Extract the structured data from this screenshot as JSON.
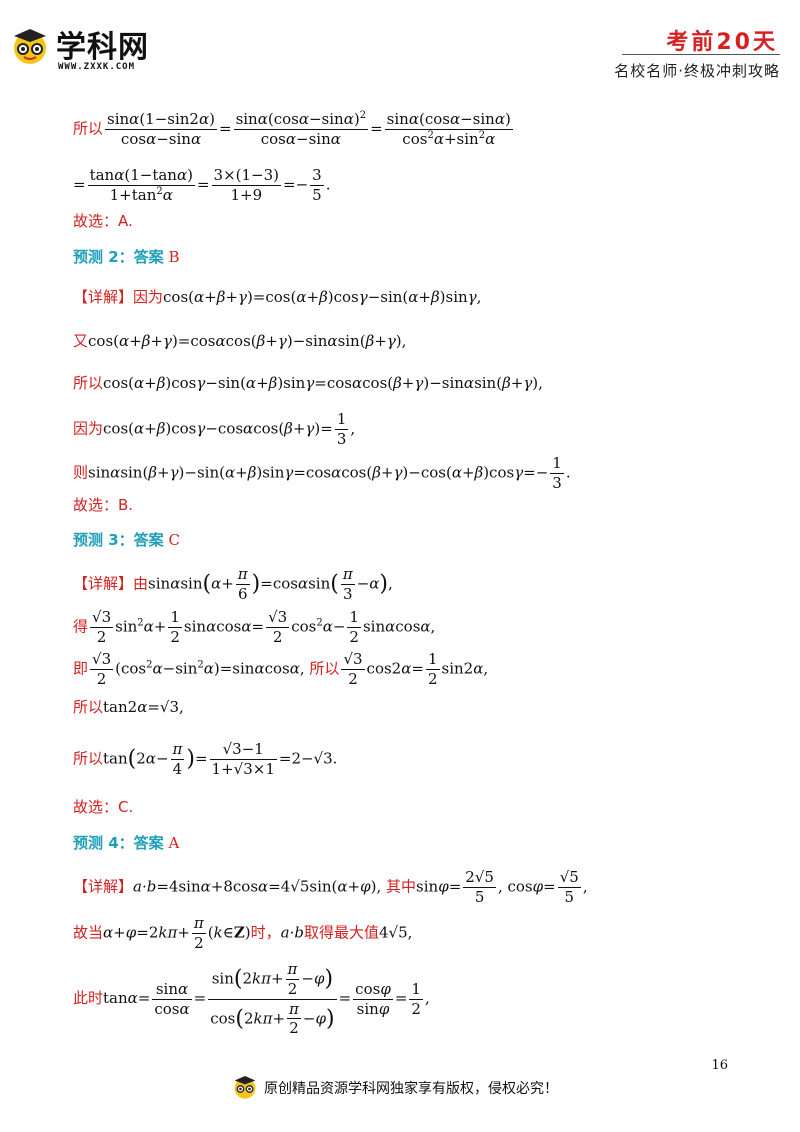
{
  "header": {
    "logo_text": "学科网",
    "logo_url": "WWW.ZXXK.COM",
    "title": "考前20天",
    "subtitle": "名校名师·终极冲刺攻略"
  },
  "lines": {
    "l1_prefix": "所以",
    "l3": "故选：A.",
    "p2_title": "预测 2：答案",
    "p2_answer": "B",
    "detail_tag": "【详解】",
    "p2_l1_prefix": "因为",
    "p2_l2_prefix": "又",
    "p2_l3_prefix": "所以",
    "p2_l4_prefix": "因为",
    "p2_l5_prefix": "则",
    "p2_end": "故选：B.",
    "p3_title": "预测 3：答案",
    "p3_answer": "C",
    "p3_l1_prefix": "由",
    "p3_l2_prefix": "得",
    "p3_l3_prefix": "即",
    "p3_l3_mid": "所以",
    "p3_l4_prefix": "所以",
    "p3_l5_prefix": "所以",
    "p3_end": "故选：C.",
    "p4_title": "预测 4：答案",
    "p4_answer": "A",
    "p4_l1_mid": "其中",
    "p4_l2_prefix": "故当",
    "p4_l2_mid1": "时，",
    "p4_l2_mid2": "取得最大值",
    "p4_l3_prefix": "此时"
  },
  "page_number": "16",
  "footer": {
    "text": "原创精品资源学科网独家享有版权，侵权必究！"
  }
}
